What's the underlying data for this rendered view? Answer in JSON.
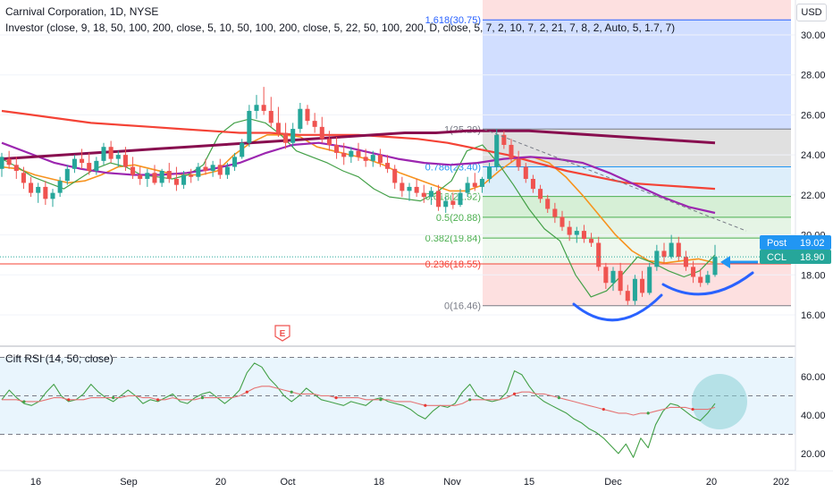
{
  "header": {
    "title": "Carnival Corporation, 1D, NYSE",
    "indicator": "Investor (close, 9, 18, 50, 100, 200, close, 5, 10, 50, 100, 200, close, 5, 22, 50, 100, 200, D, close, 5, 7, 2, 10, 7, 2, 21, 7, 8, 2, Auto, 5, 1.7, 7)",
    "currency": "USD"
  },
  "rsi_panel": {
    "label": "Cift RSI (14, 50; close)"
  },
  "price_tags": {
    "post_label": "Post",
    "post_value": "19.02",
    "ccl_label": "CCL",
    "ccl_value": "18.90"
  },
  "event_marker": "E",
  "colors": {
    "up": "#26a69a",
    "down": "#ef5350",
    "ma_orange": "#f7931e",
    "ma_green": "#43a047",
    "ma_red": "#f44336",
    "ma_purple": "#9c27b0",
    "ma_maroon": "#880e4f",
    "fib_blue_zone": "#cfdcff",
    "fib_red_zone": "#fde0e0",
    "tag_blue": "#2196f3",
    "tag_teal": "#26a69a",
    "rsi_band": "#e3f2fd",
    "rsi_ellipse": "#8ad0d6"
  },
  "chart_data": [
    {
      "type": "candlestick",
      "title": "Carnival Corporation, 1D, NYSE",
      "ylim": [
        15.0,
        31.5
      ],
      "y_ticks": [
        "16.00",
        "18.00",
        "20.00",
        "22.00",
        "24.00",
        "26.00",
        "28.00",
        "30.00"
      ],
      "x_ticks": [
        "16",
        "Sep",
        "20",
        "Oct",
        "18",
        "Nov",
        "15",
        "Dec",
        "20",
        "202"
      ],
      "last_close": 18.9,
      "post_price": 19.02,
      "candles": [
        {
          "o": 23.3,
          "h": 24.1,
          "l": 22.9,
          "c": 23.9
        },
        {
          "o": 23.8,
          "h": 24.2,
          "l": 23.3,
          "c": 23.5
        },
        {
          "o": 23.5,
          "h": 23.9,
          "l": 22.8,
          "c": 23.2
        },
        {
          "o": 23.1,
          "h": 23.4,
          "l": 22.3,
          "c": 22.6
        },
        {
          "o": 22.6,
          "h": 22.9,
          "l": 21.9,
          "c": 22.1
        },
        {
          "o": 22.1,
          "h": 22.6,
          "l": 21.6,
          "c": 22.4
        },
        {
          "o": 22.4,
          "h": 22.7,
          "l": 21.5,
          "c": 21.8
        },
        {
          "o": 21.8,
          "h": 22.3,
          "l": 21.4,
          "c": 22.1
        },
        {
          "o": 22.1,
          "h": 22.9,
          "l": 21.9,
          "c": 22.7
        },
        {
          "o": 22.7,
          "h": 23.5,
          "l": 22.5,
          "c": 23.3
        },
        {
          "o": 23.3,
          "h": 24.0,
          "l": 23.1,
          "c": 23.8
        },
        {
          "o": 23.8,
          "h": 24.3,
          "l": 23.3,
          "c": 23.6
        },
        {
          "o": 23.6,
          "h": 24.1,
          "l": 23.0,
          "c": 23.2
        },
        {
          "o": 23.2,
          "h": 23.9,
          "l": 23.0,
          "c": 23.7
        },
        {
          "o": 23.7,
          "h": 24.6,
          "l": 23.5,
          "c": 24.4
        },
        {
          "o": 24.4,
          "h": 24.7,
          "l": 23.6,
          "c": 23.8
        },
        {
          "o": 23.8,
          "h": 24.2,
          "l": 23.4,
          "c": 24.0
        },
        {
          "o": 24.0,
          "h": 24.4,
          "l": 23.2,
          "c": 23.4
        },
        {
          "o": 23.4,
          "h": 23.9,
          "l": 22.8,
          "c": 23.0
        },
        {
          "o": 23.0,
          "h": 23.4,
          "l": 22.5,
          "c": 22.8
        },
        {
          "o": 22.8,
          "h": 23.3,
          "l": 22.4,
          "c": 23.1
        },
        {
          "o": 23.1,
          "h": 23.5,
          "l": 22.5,
          "c": 22.6
        },
        {
          "o": 22.6,
          "h": 23.3,
          "l": 22.4,
          "c": 23.2
        },
        {
          "o": 23.2,
          "h": 23.6,
          "l": 22.6,
          "c": 22.8
        },
        {
          "o": 22.8,
          "h": 23.4,
          "l": 22.2,
          "c": 22.5
        },
        {
          "o": 22.5,
          "h": 23.2,
          "l": 22.3,
          "c": 23.0
        },
        {
          "o": 23.0,
          "h": 23.3,
          "l": 22.6,
          "c": 22.9
        },
        {
          "o": 22.9,
          "h": 23.6,
          "l": 22.7,
          "c": 23.4
        },
        {
          "o": 23.4,
          "h": 23.8,
          "l": 23.0,
          "c": 23.2
        },
        {
          "o": 23.2,
          "h": 23.7,
          "l": 22.9,
          "c": 23.5
        },
        {
          "o": 23.5,
          "h": 23.8,
          "l": 22.8,
          "c": 23.0
        },
        {
          "o": 23.0,
          "h": 23.6,
          "l": 22.8,
          "c": 23.4
        },
        {
          "o": 23.4,
          "h": 24.1,
          "l": 23.2,
          "c": 23.9
        },
        {
          "o": 23.9,
          "h": 24.8,
          "l": 23.8,
          "c": 24.6
        },
        {
          "o": 24.6,
          "h": 26.5,
          "l": 24.4,
          "c": 26.2
        },
        {
          "o": 26.2,
          "h": 27.0,
          "l": 25.8,
          "c": 26.5
        },
        {
          "o": 26.5,
          "h": 27.4,
          "l": 26.0,
          "c": 26.2
        },
        {
          "o": 26.2,
          "h": 26.9,
          "l": 25.4,
          "c": 25.6
        },
        {
          "o": 25.6,
          "h": 26.4,
          "l": 24.9,
          "c": 25.1
        },
        {
          "o": 25.1,
          "h": 25.6,
          "l": 24.3,
          "c": 24.6
        },
        {
          "o": 24.6,
          "h": 25.6,
          "l": 24.4,
          "c": 25.3
        },
        {
          "o": 25.3,
          "h": 26.6,
          "l": 25.1,
          "c": 26.3
        },
        {
          "o": 26.3,
          "h": 26.5,
          "l": 25.5,
          "c": 25.7
        },
        {
          "o": 25.7,
          "h": 26.1,
          "l": 25.1,
          "c": 25.4
        },
        {
          "o": 25.4,
          "h": 25.9,
          "l": 24.6,
          "c": 24.8
        },
        {
          "o": 24.8,
          "h": 25.2,
          "l": 24.2,
          "c": 24.5
        },
        {
          "o": 24.5,
          "h": 24.9,
          "l": 23.8,
          "c": 24.1
        },
        {
          "o": 24.1,
          "h": 24.6,
          "l": 23.5,
          "c": 23.9
        },
        {
          "o": 23.9,
          "h": 24.4,
          "l": 23.6,
          "c": 24.2
        },
        {
          "o": 24.2,
          "h": 24.6,
          "l": 23.7,
          "c": 23.9
        },
        {
          "o": 23.9,
          "h": 24.3,
          "l": 23.4,
          "c": 23.7
        },
        {
          "o": 23.7,
          "h": 24.2,
          "l": 23.4,
          "c": 24.0
        },
        {
          "o": 24.0,
          "h": 24.3,
          "l": 23.4,
          "c": 23.6
        },
        {
          "o": 23.6,
          "h": 24.0,
          "l": 23.1,
          "c": 23.3
        },
        {
          "o": 23.3,
          "h": 23.5,
          "l": 22.3,
          "c": 22.6
        },
        {
          "o": 22.6,
          "h": 22.9,
          "l": 21.9,
          "c": 22.2
        },
        {
          "o": 22.2,
          "h": 22.6,
          "l": 21.7,
          "c": 22.4
        },
        {
          "o": 22.4,
          "h": 22.8,
          "l": 21.9,
          "c": 22.1
        },
        {
          "o": 22.1,
          "h": 22.5,
          "l": 21.6,
          "c": 21.9
        },
        {
          "o": 21.9,
          "h": 22.4,
          "l": 21.5,
          "c": 22.2
        },
        {
          "o": 22.2,
          "h": 22.5,
          "l": 21.2,
          "c": 21.4
        },
        {
          "o": 21.4,
          "h": 21.9,
          "l": 21.1,
          "c": 21.7
        },
        {
          "o": 21.7,
          "h": 22.1,
          "l": 21.3,
          "c": 21.5
        },
        {
          "o": 21.5,
          "h": 22.3,
          "l": 21.4,
          "c": 22.1
        },
        {
          "o": 22.1,
          "h": 22.9,
          "l": 21.9,
          "c": 22.6
        },
        {
          "o": 22.6,
          "h": 23.1,
          "l": 22.2,
          "c": 22.4
        },
        {
          "o": 22.4,
          "h": 22.9,
          "l": 22.1,
          "c": 22.8
        },
        {
          "o": 22.8,
          "h": 23.6,
          "l": 22.6,
          "c": 23.4
        },
        {
          "o": 23.4,
          "h": 25.3,
          "l": 23.2,
          "c": 25.0
        },
        {
          "o": 25.0,
          "h": 25.2,
          "l": 24.3,
          "c": 24.5
        },
        {
          "o": 24.5,
          "h": 24.8,
          "l": 23.6,
          "c": 23.8
        },
        {
          "o": 23.8,
          "h": 24.2,
          "l": 23.2,
          "c": 23.4
        },
        {
          "o": 23.4,
          "h": 23.6,
          "l": 22.6,
          "c": 22.8
        },
        {
          "o": 22.8,
          "h": 23.0,
          "l": 22.1,
          "c": 22.3
        },
        {
          "o": 22.3,
          "h": 22.5,
          "l": 21.6,
          "c": 21.8
        },
        {
          "o": 21.8,
          "h": 22.0,
          "l": 21.1,
          "c": 21.3
        },
        {
          "o": 21.3,
          "h": 21.6,
          "l": 20.6,
          "c": 20.9
        },
        {
          "o": 20.9,
          "h": 21.2,
          "l": 20.2,
          "c": 20.4
        },
        {
          "o": 20.4,
          "h": 20.7,
          "l": 19.7,
          "c": 20.0
        },
        {
          "o": 20.0,
          "h": 20.4,
          "l": 19.6,
          "c": 20.2
        },
        {
          "o": 20.2,
          "h": 20.5,
          "l": 19.6,
          "c": 19.8
        },
        {
          "o": 19.8,
          "h": 20.1,
          "l": 19.4,
          "c": 19.6
        },
        {
          "o": 19.6,
          "h": 19.9,
          "l": 18.2,
          "c": 18.4
        },
        {
          "o": 18.4,
          "h": 18.6,
          "l": 17.3,
          "c": 17.6
        },
        {
          "o": 17.6,
          "h": 18.4,
          "l": 17.2,
          "c": 18.2
        },
        {
          "o": 18.2,
          "h": 18.6,
          "l": 17.0,
          "c": 17.2
        },
        {
          "o": 17.2,
          "h": 17.5,
          "l": 16.5,
          "c": 16.7
        },
        {
          "o": 16.7,
          "h": 18.0,
          "l": 16.5,
          "c": 17.8
        },
        {
          "o": 17.8,
          "h": 18.2,
          "l": 16.9,
          "c": 17.1
        },
        {
          "o": 17.1,
          "h": 18.6,
          "l": 17.0,
          "c": 18.4
        },
        {
          "o": 18.4,
          "h": 19.5,
          "l": 18.2,
          "c": 19.2
        },
        {
          "o": 19.2,
          "h": 19.6,
          "l": 18.6,
          "c": 18.9
        },
        {
          "o": 18.9,
          "h": 20.0,
          "l": 18.8,
          "c": 19.6
        },
        {
          "o": 19.6,
          "h": 19.9,
          "l": 18.7,
          "c": 18.9
        },
        {
          "o": 18.9,
          "h": 19.2,
          "l": 18.2,
          "c": 18.4
        },
        {
          "o": 18.4,
          "h": 18.7,
          "l": 17.6,
          "c": 17.9
        },
        {
          "o": 17.9,
          "h": 18.3,
          "l": 17.4,
          "c": 17.6
        },
        {
          "o": 17.6,
          "h": 18.2,
          "l": 17.5,
          "c": 18.0
        },
        {
          "o": 18.0,
          "h": 19.5,
          "l": 17.9,
          "c": 18.9
        }
      ],
      "fibonacci": {
        "levels": [
          {
            "label": "1.618(30.75)",
            "value": 30.75
          },
          {
            "label": "1(25.29)",
            "value": 25.29
          },
          {
            "label": "0.786(23.40)",
            "value": 23.4
          },
          {
            "label": "0.618(21.92)",
            "value": 21.92
          },
          {
            "label": "0.5(20.88)",
            "value": 20.88
          },
          {
            "label": "0.382(19.84)",
            "value": 19.84
          },
          {
            "label": "0.236(18.55)",
            "value": 18.55
          },
          {
            "label": "0(16.46)",
            "value": 16.46
          }
        ]
      },
      "trendline": {
        "from": 25.29,
        "to": 20.2
      },
      "moving_averages": [
        {
          "color": "orange",
          "values": [
            23.4,
            23.3,
            23.0,
            22.8,
            22.6,
            22.7,
            23.0,
            23.4,
            23.5,
            23.3,
            23.1,
            23.0,
            23.0,
            23.2,
            24.0,
            24.6,
            25.0,
            25.0,
            24.9,
            24.4,
            24.2,
            24.0,
            23.8,
            23.5,
            23.1,
            22.8,
            22.5,
            22.2,
            22.2,
            22.5,
            23.2,
            23.8,
            23.9,
            23.6,
            22.9,
            22.0,
            21.0,
            20.0,
            19.2,
            18.7,
            18.6,
            18.7,
            18.8,
            18.6
          ]
        },
        {
          "color": "green",
          "values": [
            23.8,
            23.4,
            22.9,
            22.6,
            22.3,
            22.8,
            23.3,
            23.6,
            23.4,
            23.0,
            22.9,
            22.8,
            23.0,
            23.5,
            25.0,
            25.6,
            25.8,
            25.6,
            25.0,
            24.2,
            23.9,
            23.6,
            23.2,
            22.9,
            22.3,
            21.9,
            21.8,
            21.7,
            22.1,
            22.7,
            24.2,
            24.5,
            23.6,
            22.5,
            21.3,
            20.3,
            19.7,
            18.0,
            16.9,
            17.2,
            18.0,
            18.9,
            18.6,
            18.2,
            17.9,
            18.2,
            19.0
          ]
        },
        {
          "color": "red",
          "values": [
            26.2,
            26.0,
            25.8,
            25.6,
            25.5,
            25.4,
            25.3,
            25.2,
            25.1,
            25.1,
            25.0,
            25.0,
            25.0,
            24.9,
            24.8,
            24.6,
            24.3,
            24.0,
            23.6,
            23.2,
            22.9,
            22.6,
            22.5,
            22.4,
            22.3
          ]
        },
        {
          "color": "purple",
          "values": [
            24.6,
            24.1,
            23.6,
            23.3,
            23.1,
            23.0,
            23.0,
            23.1,
            23.3,
            23.6,
            24.1,
            24.5,
            24.6,
            24.4,
            24.1,
            23.8,
            23.6,
            23.5,
            23.6,
            23.8,
            23.9,
            23.8,
            23.6,
            23.1,
            22.5,
            21.9,
            21.4,
            21.1
          ]
        },
        {
          "color": "maroon",
          "values": [
            23.8,
            23.9,
            24.0,
            24.1,
            24.2,
            24.3,
            24.4,
            24.5,
            24.6,
            24.7,
            24.8,
            24.9,
            25.0,
            25.1,
            25.1,
            25.2,
            25.2,
            25.2,
            25.1,
            25.0,
            24.9,
            24.8,
            24.7,
            24.6
          ]
        }
      ]
    },
    {
      "type": "line",
      "title": "Cift RSI (14, 50; close)",
      "ylim": [
        15,
        75
      ],
      "y_ticks": [
        "20.00",
        "40.00",
        "60.00"
      ],
      "reference_lines": [
        70,
        50,
        30
      ],
      "series": [
        {
          "color": "green",
          "values": [
            48,
            53,
            49,
            46,
            45,
            47,
            52,
            56,
            50,
            47,
            48,
            51,
            56,
            52,
            49,
            47,
            50,
            53,
            50,
            46,
            48,
            47,
            49,
            51,
            47,
            46,
            49,
            51,
            52,
            49,
            46,
            49,
            53,
            62,
            67,
            65,
            59,
            55,
            50,
            47,
            50,
            54,
            51,
            48,
            47,
            46,
            45,
            47,
            46,
            45,
            48,
            49,
            47,
            46,
            45,
            43,
            40,
            38,
            42,
            45,
            44,
            46,
            52,
            56,
            50,
            48,
            47,
            48,
            52,
            63,
            61,
            55,
            50,
            47,
            45,
            43,
            41,
            38,
            36,
            33,
            31,
            28,
            24,
            20,
            25,
            18,
            28,
            23,
            35,
            42,
            46,
            45,
            42,
            39,
            37,
            41,
            46
          ]
        },
        {
          "color": "red",
          "values": [
            48,
            48,
            48,
            47,
            47,
            47,
            48,
            49,
            49,
            48,
            48,
            48,
            49,
            49,
            49,
            49,
            49,
            50,
            50,
            49,
            49,
            48,
            48,
            49,
            48,
            48,
            48,
            49,
            49,
            49,
            49,
            49,
            50,
            52,
            54,
            55,
            55,
            54,
            53,
            52,
            51,
            51,
            51,
            50,
            50,
            49,
            49,
            49,
            49,
            48,
            48,
            48,
            48,
            47,
            47,
            47,
            46,
            45,
            45,
            45,
            45,
            45,
            46,
            48,
            48,
            48,
            48,
            48,
            49,
            51,
            52,
            52,
            51,
            51,
            50,
            49,
            48,
            47,
            46,
            45,
            44,
            43,
            42,
            41,
            41,
            40,
            41,
            41,
            42,
            43,
            44,
            44,
            44,
            43,
            43,
            43,
            44
          ]
        }
      ]
    }
  ]
}
